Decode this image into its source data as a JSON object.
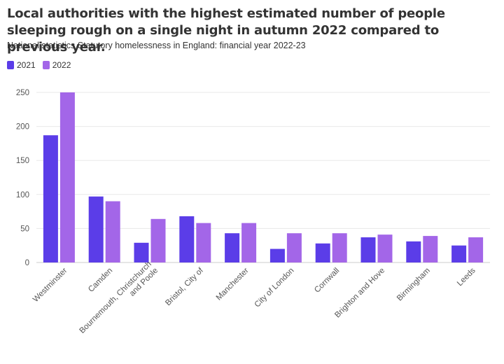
{
  "title": "Local authorities with the highest estimated number of people sleeping rough on a single night in autumn 2022 compared to previous year.",
  "subtitle": "National statistics Statutory homelessness in England: financial year 2022-23",
  "colors": {
    "2021": "#5b3de8",
    "2022": "#a366e8"
  },
  "chart_data": {
    "type": "bar",
    "title": "Local authorities with the highest estimated number of people sleeping rough on a single night in autumn 2022 compared to previous year.",
    "xlabel": "",
    "ylabel": "",
    "ylim": [
      0,
      250
    ],
    "yticks": [
      0,
      50,
      100,
      150,
      200,
      250
    ],
    "grid": true,
    "legend": "top-left",
    "categories": [
      "Westminster",
      "Camden",
      "Bournemouth, Christchurch and Poole",
      "Bristol, City of",
      "Manchester",
      "City of London",
      "Cornwall",
      "Brighton and Hove",
      "Birmingham",
      "Leeds"
    ],
    "category_lines": [
      [
        "Westminster"
      ],
      [
        "Camden"
      ],
      [
        "Bournemouth, Christchurch",
        "and Poole"
      ],
      [
        "Bristol, City of"
      ],
      [
        "Manchester"
      ],
      [
        "City of London"
      ],
      [
        "Cornwall"
      ],
      [
        "Brighton and Hove"
      ],
      [
        "Birmingham"
      ],
      [
        "Leeds"
      ]
    ],
    "series": [
      {
        "name": "2021",
        "values": [
          187,
          97,
          29,
          68,
          43,
          20,
          28,
          37,
          31,
          25
        ]
      },
      {
        "name": "2022",
        "values": [
          250,
          90,
          64,
          58,
          58,
          43,
          43,
          41,
          39,
          37
        ]
      }
    ]
  }
}
